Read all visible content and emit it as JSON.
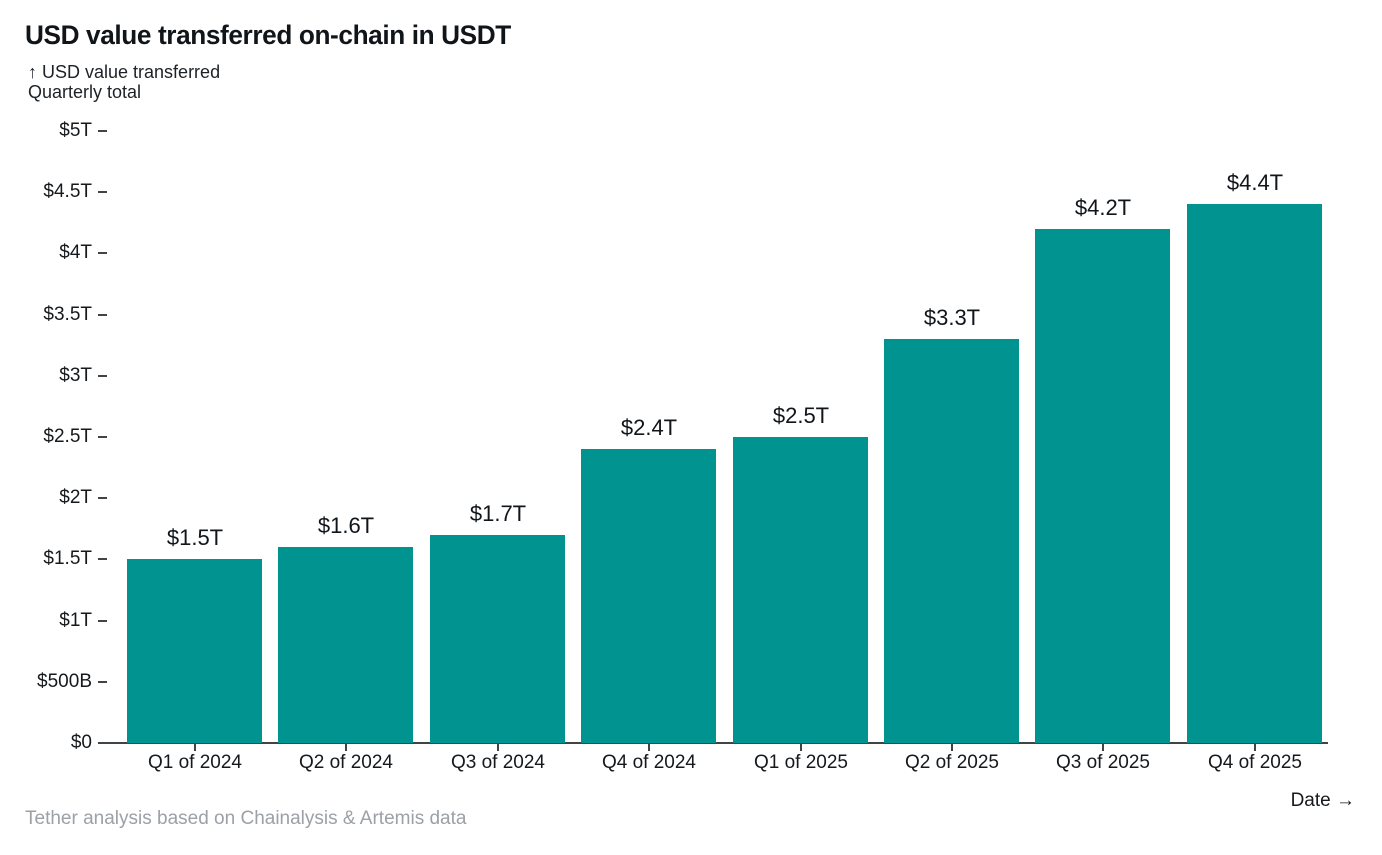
{
  "header": {
    "title": "USD value transferred on-chain in USDT",
    "subtitle_line1": "↑ USD value transferred",
    "subtitle_line2": "Quarterly total"
  },
  "footer": {
    "source": "Tether analysis based on Chainalysis & Artemis data",
    "x_axis_label": "Date →"
  },
  "colors": {
    "bar": "#009390",
    "dark_text": "#10151a",
    "axis": "#3f4449",
    "muted_text": "#9ba1a6"
  },
  "chart_data": {
    "type": "bar",
    "title": "USD value transferred on-chain in USDT",
    "ylabel": "USD value transferred",
    "xlabel": "Date",
    "subtitle": "Quarterly total",
    "categories": [
      "Q1 of 2024",
      "Q2 of 2024",
      "Q3 of 2024",
      "Q4 of 2024",
      "Q1 of 2025",
      "Q2 of 2025",
      "Q3 of 2025",
      "Q4 of 2025"
    ],
    "values": [
      1.5,
      1.6,
      1.7,
      2.4,
      2.5,
      3.3,
      4.2,
      4.4
    ],
    "bar_labels": [
      "$1.5T",
      "$1.6T",
      "$1.7T",
      "$2.4T",
      "$2.5T",
      "$3.3T",
      "$4.2T",
      "$4.4T"
    ],
    "unit": "trillions of USD",
    "ylim": [
      0,
      5
    ],
    "y_tick_values": [
      0,
      0.5,
      1,
      1.5,
      2,
      2.5,
      3,
      3.5,
      4,
      4.5,
      5
    ],
    "y_tick_labels": [
      "$0",
      "$500B",
      "$1T",
      "$1.5T",
      "$2T",
      "$2.5T",
      "$3T",
      "$3.5T",
      "$4T",
      "$4.5T",
      "$5T"
    ],
    "grid": false,
    "legend": false,
    "bar_color": "#009390"
  }
}
